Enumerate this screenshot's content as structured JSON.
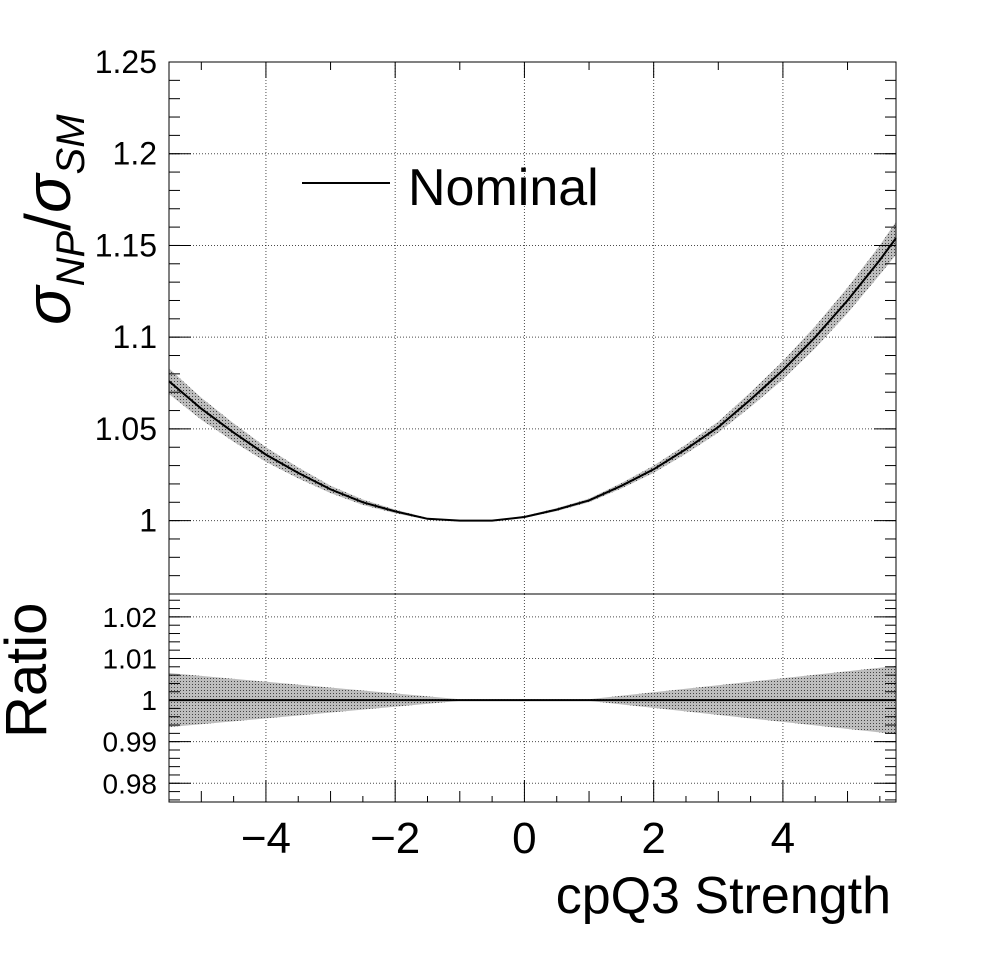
{
  "chart_data": [
    {
      "type": "line",
      "panel": "main",
      "ylabel_parts": {
        "sigma": "σ",
        "num_sub": "NP",
        "slash": "/",
        "den_sub": "SM"
      },
      "ylim": [
        0.96,
        1.25
      ],
      "yticks": [
        1,
        1.05,
        1.1,
        1.15,
        1.2,
        1.25
      ],
      "ytick_labels": [
        "1",
        "1.05",
        "1.1",
        "1.15",
        "1.2",
        "1.25"
      ],
      "grid": true,
      "legend": {
        "position": "top-left",
        "entries": [
          "Nominal"
        ]
      },
      "series": [
        {
          "name": "Nominal",
          "x": [
            -5.5,
            -5,
            -4.5,
            -4,
            -3.5,
            -3,
            -2.5,
            -2,
            -1.5,
            -1,
            -0.5,
            0,
            0.5,
            1,
            1.5,
            2,
            2.5,
            3,
            3.5,
            4,
            4.5,
            5,
            5.5,
            5.75
          ],
          "y": [
            1.076,
            1.061,
            1.048,
            1.036,
            1.026,
            1.017,
            1.01,
            1.005,
            1.001,
            1.0,
            1.0,
            1.002,
            1.006,
            1.011,
            1.019,
            1.028,
            1.039,
            1.051,
            1.066,
            1.082,
            1.1,
            1.12,
            1.142,
            1.154
          ],
          "band_halfwidth": [
            0.007,
            0.006,
            0.005,
            0.004,
            0.003,
            0.002,
            0.0015,
            0.001,
            0.0005,
            0.0003,
            0.0003,
            0.0005,
            0.0008,
            0.001,
            0.0015,
            0.002,
            0.0025,
            0.003,
            0.004,
            0.005,
            0.006,
            0.007,
            0.008,
            0.009
          ]
        }
      ]
    },
    {
      "type": "line",
      "panel": "ratio",
      "ylabel": "Ratio",
      "xlabel": "cpQ3 Strength",
      "xlim": [
        -5.5,
        5.75
      ],
      "xticks": [
        -4,
        -2,
        0,
        2,
        4
      ],
      "xtick_labels": [
        "−4",
        "−2",
        "0",
        "2",
        "4"
      ],
      "ylim": [
        0.9755,
        1.0255
      ],
      "yticks": [
        0.98,
        0.99,
        1,
        1.01,
        1.02
      ],
      "ytick_labels": [
        "0.98",
        "0.99",
        "1",
        "1.01",
        "1.02"
      ],
      "grid": true,
      "series": [
        {
          "x": [
            -5.5,
            5.75
          ],
          "y": [
            1,
            1
          ],
          "band_halfwidth_at_x": {
            "-5.5": 0.0065,
            "-1": 0.0002,
            "1": 0.0002,
            "5.75": 0.0082
          }
        }
      ]
    }
  ]
}
